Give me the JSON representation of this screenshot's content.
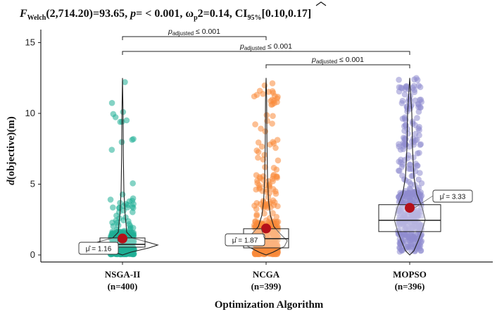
{
  "chart_data": {
    "type": "violin-box-scatter",
    "title": "F_Welch(2,714.20)=93.65, p= < 0.001, ω̂p²=0.14, CI95%[0.10,0.17]",
    "title_parts": {
      "f": "F",
      "f_sub": "Welch",
      "stat": "(2,714.20)=93.65, ",
      "p": "p",
      "p_value": "= < 0.001, ",
      "omega": "ω",
      "omega_sub": "p",
      "omega_value": "2=0.14, CI",
      "ci_sub": "95%",
      "ci_value": "[0.10,0.17]"
    },
    "xlabel": "Optimization Algorithm",
    "ylabel_italic": "d",
    "ylabel_rest": "(objective)(m)",
    "ylabel": "d(objective)(m)",
    "ylim": [
      -0.4,
      16
    ],
    "yticks": [
      0,
      5,
      10,
      15
    ],
    "groups": [
      {
        "name": "NSGA-II",
        "n_label": "(n=400)",
        "n": 400,
        "color": "#1fae95",
        "mean": 1.16,
        "mean_label": "μ̂ = 1.16",
        "q1": 0.55,
        "median": 0.75,
        "q3": 1.2,
        "max": 12.5,
        "min": 0.05
      },
      {
        "name": "NCGA",
        "n_label": "(n=399)",
        "n": 399,
        "color": "#f98a3a",
        "mean": 1.87,
        "mean_label": "μ̂ = 1.87",
        "q1": 0.5,
        "median": 1.15,
        "q3": 1.85,
        "max": 12.5,
        "min": 0.05
      },
      {
        "name": "MOPSO",
        "n_label": "(n=396)",
        "n": 396,
        "color": "#8f8cd0",
        "mean": 3.33,
        "mean_label": "μ̂ = 3.33",
        "q1": 1.65,
        "median": 2.45,
        "q3": 3.55,
        "max": 12.5,
        "min": 0.1
      }
    ],
    "comparisons": [
      {
        "from": "NSGA-II",
        "to": "NCGA",
        "label_p": "p",
        "label_sub": "adjusted",
        "label_rest": " ≤ 0.001",
        "y": 15.2
      },
      {
        "from": "NSGA-II",
        "to": "MOPSO",
        "label_p": "p",
        "label_sub": "adjusted",
        "label_rest": " ≤ 0.001",
        "y": 14.4
      },
      {
        "from": "NCGA",
        "to": "MOPSO",
        "label_p": "p",
        "label_sub": "adjusted",
        "label_rest": " ≤ 0.001",
        "y": 13.5
      }
    ]
  }
}
